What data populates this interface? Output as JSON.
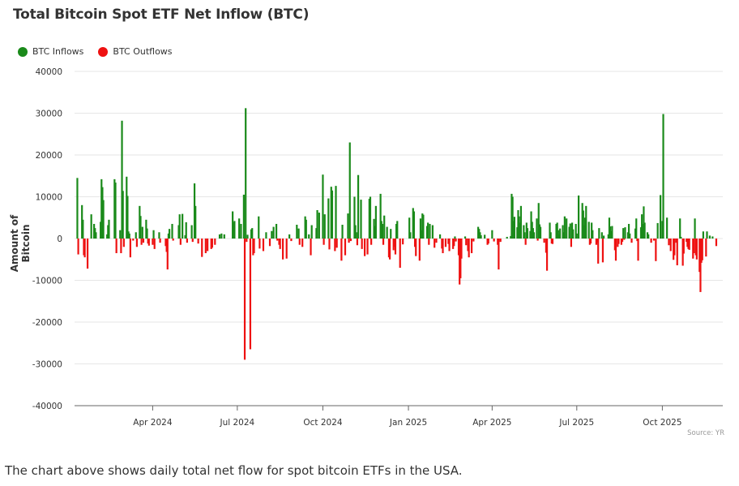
{
  "chart_data": {
    "type": "bar",
    "title": "Total Bitcoin Spot ETF Net Inflow (BTC)",
    "xlabel": "",
    "ylabel": "Amount of Bitcoin",
    "ylim": [
      -40000,
      40000
    ],
    "yticks": [
      40000,
      30000,
      20000,
      10000,
      0,
      -10000,
      -20000,
      -30000,
      -40000
    ],
    "xticks": [
      {
        "label": "Apr 2024",
        "date": "2024-04-01"
      },
      {
        "label": "Jul 2024",
        "date": "2024-07-01"
      },
      {
        "label": "Oct 2024",
        "date": "2024-10-01"
      },
      {
        "label": "Jan 2025",
        "date": "2025-01-01"
      },
      {
        "label": "Apr 2025",
        "date": "2025-04-01"
      },
      {
        "label": "Jul 2025",
        "date": "2025-07-01"
      },
      {
        "label": "Oct 2025",
        "date": "2025-10-01"
      }
    ],
    "xrange": [
      "2024-01-08",
      "2025-12-05"
    ],
    "grid": true,
    "legend_position": "top-left",
    "series": [
      {
        "name": "BTC Inflows",
        "color": "#1a8a1a"
      },
      {
        "name": "BTC Outflows",
        "color": "#ee1111"
      }
    ],
    "points": [
      [
        "2024-01-11",
        14500
      ],
      [
        "2024-01-12",
        -3800
      ],
      [
        "2024-01-16",
        8000
      ],
      [
        "2024-01-17",
        4500
      ],
      [
        "2024-01-18",
        -4000
      ],
      [
        "2024-01-19",
        -4500
      ],
      [
        "2024-01-22",
        -7200
      ],
      [
        "2024-01-26",
        5800
      ],
      [
        "2024-01-29",
        3500
      ],
      [
        "2024-01-30",
        2500
      ],
      [
        "2024-01-31",
        1500
      ],
      [
        "2024-02-05",
        4000
      ],
      [
        "2024-02-06",
        14200
      ],
      [
        "2024-02-07",
        12300
      ],
      [
        "2024-02-08",
        9200
      ],
      [
        "2024-02-12",
        1000
      ],
      [
        "2024-02-13",
        3200
      ],
      [
        "2024-02-14",
        4500
      ],
      [
        "2024-02-20",
        14200
      ],
      [
        "2024-02-21",
        13400
      ],
      [
        "2024-02-22",
        -3500
      ],
      [
        "2024-02-26",
        2000
      ],
      [
        "2024-02-27",
        -3500
      ],
      [
        "2024-02-28",
        28200
      ],
      [
        "2024-02-29",
        11400
      ],
      [
        "2024-03-01",
        -2000
      ],
      [
        "2024-03-04",
        14800
      ],
      [
        "2024-03-05",
        10200
      ],
      [
        "2024-03-06",
        1700
      ],
      [
        "2024-03-07",
        1200
      ],
      [
        "2024-03-08",
        -4500
      ],
      [
        "2024-03-11",
        -500
      ],
      [
        "2024-03-14",
        1500
      ],
      [
        "2024-03-15",
        -2000
      ],
      [
        "2024-03-18",
        7800
      ],
      [
        "2024-03-19",
        5400
      ],
      [
        "2024-03-20",
        -1500
      ],
      [
        "2024-03-21",
        2800
      ],
      [
        "2024-03-22",
        -1000
      ],
      [
        "2024-03-25",
        4500
      ],
      [
        "2024-03-26",
        2400
      ],
      [
        "2024-03-27",
        -1200
      ],
      [
        "2024-03-28",
        -1700
      ],
      [
        "2024-04-01",
        -1500
      ],
      [
        "2024-04-02",
        2000
      ],
      [
        "2024-04-03",
        -2500
      ],
      [
        "2024-04-08",
        1500
      ],
      [
        "2024-04-09",
        -1000
      ],
      [
        "2024-04-15",
        -1800
      ],
      [
        "2024-04-16",
        -3200
      ],
      [
        "2024-04-17",
        -7400
      ],
      [
        "2024-04-18",
        1200
      ],
      [
        "2024-04-19",
        2300
      ],
      [
        "2024-04-22",
        3500
      ],
      [
        "2024-04-23",
        -500
      ],
      [
        "2024-04-29",
        3200
      ],
      [
        "2024-04-30",
        5800
      ],
      [
        "2024-05-01",
        -1500
      ],
      [
        "2024-05-03",
        5900
      ],
      [
        "2024-05-06",
        800
      ],
      [
        "2024-05-07",
        3900
      ],
      [
        "2024-05-08",
        -1000
      ],
      [
        "2024-05-13",
        3200
      ],
      [
        "2024-05-14",
        -800
      ],
      [
        "2024-05-16",
        13200
      ],
      [
        "2024-05-17",
        7800
      ],
      [
        "2024-05-20",
        -1200
      ],
      [
        "2024-05-24",
        -4400
      ],
      [
        "2024-05-28",
        -3500
      ],
      [
        "2024-05-30",
        -3000
      ],
      [
        "2024-06-03",
        -2500
      ],
      [
        "2024-06-04",
        -2200
      ],
      [
        "2024-06-07",
        -1500
      ],
      [
        "2024-06-12",
        1000
      ],
      [
        "2024-06-14",
        1200
      ],
      [
        "2024-06-17",
        1000
      ],
      [
        "2024-06-26",
        6500
      ],
      [
        "2024-06-27",
        3900
      ],
      [
        "2024-06-28",
        4200
      ],
      [
        "2024-07-03",
        4800
      ],
      [
        "2024-07-05",
        3500
      ],
      [
        "2024-07-08",
        10500
      ],
      [
        "2024-07-09",
        -29000
      ],
      [
        "2024-07-10",
        31200
      ],
      [
        "2024-07-11",
        -800
      ],
      [
        "2024-07-12",
        900
      ],
      [
        "2024-07-15",
        -26500
      ],
      [
        "2024-07-16",
        2200
      ],
      [
        "2024-07-17",
        2500
      ],
      [
        "2024-07-18",
        -4000
      ],
      [
        "2024-07-19",
        -3500
      ],
      [
        "2024-07-24",
        5300
      ],
      [
        "2024-07-25",
        -2400
      ],
      [
        "2024-07-29",
        -3000
      ],
      [
        "2024-08-01",
        1500
      ],
      [
        "2024-08-05",
        -1800
      ],
      [
        "2024-08-07",
        1800
      ],
      [
        "2024-08-09",
        2800
      ],
      [
        "2024-08-12",
        3500
      ],
      [
        "2024-08-13",
        -500
      ],
      [
        "2024-08-15",
        -1500
      ],
      [
        "2024-08-16",
        -2500
      ],
      [
        "2024-08-19",
        -5000
      ],
      [
        "2024-08-23",
        -4800
      ],
      [
        "2024-08-26",
        1000
      ],
      [
        "2024-08-28",
        -600
      ],
      [
        "2024-09-03",
        3300
      ],
      [
        "2024-09-05",
        2400
      ],
      [
        "2024-09-06",
        -1500
      ],
      [
        "2024-09-09",
        -2000
      ],
      [
        "2024-09-12",
        5300
      ],
      [
        "2024-09-13",
        4500
      ],
      [
        "2024-09-16",
        1000
      ],
      [
        "2024-09-18",
        -4000
      ],
      [
        "2024-09-19",
        3200
      ],
      [
        "2024-09-24",
        2500
      ],
      [
        "2024-09-25",
        6800
      ],
      [
        "2024-09-27",
        6200
      ],
      [
        "2024-10-01",
        15300
      ],
      [
        "2024-10-02",
        -1500
      ],
      [
        "2024-10-03",
        5800
      ],
      [
        "2024-10-07",
        9600
      ],
      [
        "2024-10-08",
        -2600
      ],
      [
        "2024-10-10",
        12400
      ],
      [
        "2024-10-11",
        11500
      ],
      [
        "2024-10-14",
        -3000
      ],
      [
        "2024-10-15",
        12600
      ],
      [
        "2024-10-16",
        -2200
      ],
      [
        "2024-10-21",
        -5300
      ],
      [
        "2024-10-22",
        3300
      ],
      [
        "2024-10-25",
        -4000
      ],
      [
        "2024-10-28",
        6000
      ],
      [
        "2024-10-29",
        -1000
      ],
      [
        "2024-10-30",
        23000
      ],
      [
        "2024-10-31",
        -600
      ],
      [
        "2024-11-04",
        10000
      ],
      [
        "2024-11-05",
        3200
      ],
      [
        "2024-11-06",
        1500
      ],
      [
        "2024-11-07",
        -1600
      ],
      [
        "2024-11-08",
        15200
      ],
      [
        "2024-11-11",
        9300
      ],
      [
        "2024-11-12",
        -2500
      ],
      [
        "2024-11-15",
        -4200
      ],
      [
        "2024-11-18",
        -3800
      ],
      [
        "2024-11-20",
        9500
      ],
      [
        "2024-11-21",
        10000
      ],
      [
        "2024-11-22",
        -1500
      ],
      [
        "2024-11-25",
        4700
      ],
      [
        "2024-11-26",
        3000
      ],
      [
        "2024-11-27",
        7800
      ],
      [
        "2024-12-02",
        10700
      ],
      [
        "2024-12-03",
        4200
      ],
      [
        "2024-12-04",
        3500
      ],
      [
        "2024-12-05",
        -1500
      ],
      [
        "2024-12-06",
        5500
      ],
      [
        "2024-12-09",
        2800
      ],
      [
        "2024-12-11",
        -4500
      ],
      [
        "2024-12-12",
        -5000
      ],
      [
        "2024-12-13",
        2300
      ],
      [
        "2024-12-16",
        -2800
      ],
      [
        "2024-12-17",
        -2000
      ],
      [
        "2024-12-18",
        -3800
      ],
      [
        "2024-12-19",
        3500
      ],
      [
        "2024-12-20",
        4200
      ],
      [
        "2024-12-23",
        -7000
      ],
      [
        "2024-12-26",
        -1400
      ],
      [
        "2025-01-02",
        5000
      ],
      [
        "2025-01-03",
        1500
      ],
      [
        "2025-01-06",
        7300
      ],
      [
        "2025-01-07",
        6500
      ],
      [
        "2025-01-08",
        -2000
      ],
      [
        "2025-01-09",
        -4200
      ],
      [
        "2025-01-13",
        -5300
      ],
      [
        "2025-01-14",
        4800
      ],
      [
        "2025-01-15",
        2000
      ],
      [
        "2025-01-16",
        6000
      ],
      [
        "2025-01-17",
        5700
      ],
      [
        "2025-01-21",
        3000
      ],
      [
        "2025-01-22",
        3800
      ],
      [
        "2025-01-23",
        -1500
      ],
      [
        "2025-01-24",
        3500
      ],
      [
        "2025-01-27",
        3200
      ],
      [
        "2025-01-29",
        -2200
      ],
      [
        "2025-01-31",
        -1000
      ],
      [
        "2025-02-04",
        1000
      ],
      [
        "2025-02-06",
        -2400
      ],
      [
        "2025-02-07",
        -3500
      ],
      [
        "2025-02-10",
        -2000
      ],
      [
        "2025-02-13",
        -1300
      ],
      [
        "2025-02-14",
        -3000
      ],
      [
        "2025-02-18",
        -2500
      ],
      [
        "2025-02-19",
        -1800
      ],
      [
        "2025-02-20",
        500
      ],
      [
        "2025-02-21",
        -700
      ],
      [
        "2025-02-24",
        -4000
      ],
      [
        "2025-02-25",
        -11000
      ],
      [
        "2025-02-26",
        -9500
      ],
      [
        "2025-02-27",
        -4800
      ],
      [
        "2025-03-03",
        500
      ],
      [
        "2025-03-04",
        -1600
      ],
      [
        "2025-03-06",
        -3000
      ],
      [
        "2025-03-07",
        -4500
      ],
      [
        "2025-03-10",
        -3500
      ],
      [
        "2025-03-12",
        -700
      ],
      [
        "2025-03-17",
        2800
      ],
      [
        "2025-03-18",
        2300
      ],
      [
        "2025-03-19",
        1500
      ],
      [
        "2025-03-20",
        800
      ],
      [
        "2025-03-24",
        900
      ],
      [
        "2025-03-27",
        -1500
      ],
      [
        "2025-03-28",
        -1200
      ],
      [
        "2025-04-01",
        2000
      ],
      [
        "2025-04-03",
        -700
      ],
      [
        "2025-04-07",
        -1500
      ],
      [
        "2025-04-08",
        -7400
      ],
      [
        "2025-04-10",
        -800
      ],
      [
        "2025-04-17",
        400
      ],
      [
        "2025-04-21",
        600
      ],
      [
        "2025-04-22",
        10700
      ],
      [
        "2025-04-23",
        10000
      ],
      [
        "2025-04-24",
        4200
      ],
      [
        "2025-04-25",
        5200
      ],
      [
        "2025-04-28",
        2700
      ],
      [
        "2025-04-29",
        6800
      ],
      [
        "2025-04-30",
        5300
      ],
      [
        "2025-05-01",
        3800
      ],
      [
        "2025-05-02",
        7800
      ],
      [
        "2025-05-05",
        3200
      ],
      [
        "2025-05-06",
        1500
      ],
      [
        "2025-05-07",
        -1500
      ],
      [
        "2025-05-08",
        3800
      ],
      [
        "2025-05-09",
        2500
      ],
      [
        "2025-05-12",
        1800
      ],
      [
        "2025-05-13",
        6500
      ],
      [
        "2025-05-14",
        4000
      ],
      [
        "2025-05-15",
        2500
      ],
      [
        "2025-05-16",
        1500
      ],
      [
        "2025-05-19",
        4800
      ],
      [
        "2025-05-20",
        -500
      ],
      [
        "2025-05-21",
        8500
      ],
      [
        "2025-05-22",
        3400
      ],
      [
        "2025-05-23",
        2800
      ],
      [
        "2025-05-27",
        -1000
      ],
      [
        "2025-05-29",
        -3400
      ],
      [
        "2025-05-30",
        -7700
      ],
      [
        "2025-06-02",
        3800
      ],
      [
        "2025-06-03",
        1500
      ],
      [
        "2025-06-04",
        -1200
      ],
      [
        "2025-06-05",
        -1300
      ],
      [
        "2025-06-09",
        3500
      ],
      [
        "2025-06-10",
        3800
      ],
      [
        "2025-06-11",
        2000
      ],
      [
        "2025-06-12",
        1000
      ],
      [
        "2025-06-13",
        2400
      ],
      [
        "2025-06-16",
        3200
      ],
      [
        "2025-06-17",
        1500
      ],
      [
        "2025-06-18",
        5300
      ],
      [
        "2025-06-20",
        4800
      ],
      [
        "2025-06-23",
        2800
      ],
      [
        "2025-06-24",
        3600
      ],
      [
        "2025-06-25",
        -2000
      ],
      [
        "2025-06-26",
        3800
      ],
      [
        "2025-06-27",
        2200
      ],
      [
        "2025-06-30",
        3500
      ],
      [
        "2025-07-01",
        1200
      ],
      [
        "2025-07-03",
        10300
      ],
      [
        "2025-07-07",
        8500
      ],
      [
        "2025-07-08",
        6700
      ],
      [
        "2025-07-09",
        3200
      ],
      [
        "2025-07-10",
        5000
      ],
      [
        "2025-07-11",
        7800
      ],
      [
        "2025-07-14",
        4000
      ],
      [
        "2025-07-15",
        -1500
      ],
      [
        "2025-07-16",
        -1200
      ],
      [
        "2025-07-17",
        3800
      ],
      [
        "2025-07-18",
        2000
      ],
      [
        "2025-07-22",
        -1500
      ],
      [
        "2025-07-23",
        -1000
      ],
      [
        "2025-07-24",
        -6000
      ],
      [
        "2025-07-25",
        2500
      ],
      [
        "2025-07-28",
        1500
      ],
      [
        "2025-07-29",
        -5700
      ],
      [
        "2025-07-30",
        700
      ],
      [
        "2025-08-04",
        1000
      ],
      [
        "2025-08-05",
        5000
      ],
      [
        "2025-08-06",
        2900
      ],
      [
        "2025-08-07",
        1800
      ],
      [
        "2025-08-08",
        3000
      ],
      [
        "2025-08-11",
        -2800
      ],
      [
        "2025-08-12",
        -5300
      ],
      [
        "2025-08-14",
        -2000
      ],
      [
        "2025-08-15",
        -1300
      ],
      [
        "2025-08-18",
        -1500
      ],
      [
        "2025-08-19",
        -800
      ],
      [
        "2025-08-20",
        2500
      ],
      [
        "2025-08-21",
        -300
      ],
      [
        "2025-08-22",
        2700
      ],
      [
        "2025-08-25",
        1500
      ],
      [
        "2025-08-26",
        3500
      ],
      [
        "2025-08-27",
        1200
      ],
      [
        "2025-08-29",
        -1000
      ],
      [
        "2025-09-02",
        2400
      ],
      [
        "2025-09-03",
        4800
      ],
      [
        "2025-09-04",
        -600
      ],
      [
        "2025-09-05",
        -5300
      ],
      [
        "2025-09-08",
        2700
      ],
      [
        "2025-09-09",
        5800
      ],
      [
        "2025-09-10",
        3500
      ],
      [
        "2025-09-11",
        7700
      ],
      [
        "2025-09-12",
        3800
      ],
      [
        "2025-09-15",
        1500
      ],
      [
        "2025-09-16",
        1000
      ],
      [
        "2025-09-19",
        -1000
      ],
      [
        "2025-09-22",
        -500
      ],
      [
        "2025-09-24",
        -5400
      ],
      [
        "2025-09-26",
        3700
      ],
      [
        "2025-09-29",
        10400
      ],
      [
        "2025-10-01",
        4200
      ],
      [
        "2025-10-02",
        29800
      ],
      [
        "2025-10-06",
        5000
      ],
      [
        "2025-10-08",
        -1600
      ],
      [
        "2025-10-10",
        -3000
      ],
      [
        "2025-10-13",
        -5100
      ],
      [
        "2025-10-14",
        -4000
      ],
      [
        "2025-10-16",
        -1000
      ],
      [
        "2025-10-17",
        -6400
      ],
      [
        "2025-10-20",
        4800
      ],
      [
        "2025-10-21",
        400
      ],
      [
        "2025-10-23",
        -6500
      ],
      [
        "2025-10-24",
        -3600
      ],
      [
        "2025-10-27",
        -800
      ],
      [
        "2025-10-28",
        -2000
      ],
      [
        "2025-10-29",
        -2500
      ],
      [
        "2025-10-30",
        -2700
      ],
      [
        "2025-11-03",
        -4800
      ],
      [
        "2025-11-04",
        -3500
      ],
      [
        "2025-11-05",
        4800
      ],
      [
        "2025-11-06",
        -4000
      ],
      [
        "2025-11-07",
        -5000
      ],
      [
        "2025-11-10",
        -8000
      ],
      [
        "2025-11-11",
        -12800
      ],
      [
        "2025-11-12",
        -5800
      ],
      [
        "2025-11-13",
        -5200
      ],
      [
        "2025-11-14",
        1700
      ],
      [
        "2025-11-17",
        -4300
      ],
      [
        "2025-11-18",
        1700
      ],
      [
        "2025-11-21",
        700
      ],
      [
        "2025-11-24",
        500
      ],
      [
        "2025-11-28",
        -1800
      ]
    ]
  },
  "legend": [
    {
      "label": "BTC Inflows",
      "color": "#1a8a1a"
    },
    {
      "label": "BTC Outflows",
      "color": "#ee1111"
    }
  ],
  "source": "Source: YR",
  "caption": "The chart above shows daily total net flow for spot bitcoin ETFs in the USA."
}
